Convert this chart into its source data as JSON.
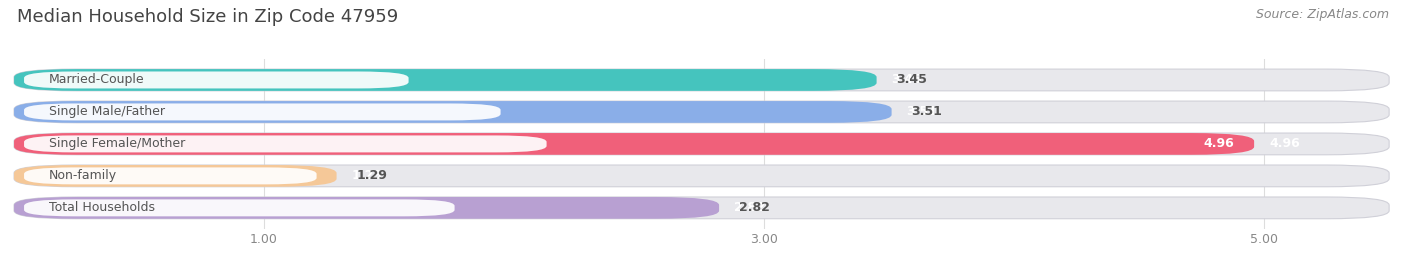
{
  "title": "Median Household Size in Zip Code 47959",
  "source": "Source: ZipAtlas.com",
  "categories": [
    "Married-Couple",
    "Single Male/Father",
    "Single Female/Mother",
    "Non-family",
    "Total Households"
  ],
  "values": [
    3.45,
    3.51,
    4.96,
    1.29,
    2.82
  ],
  "bar_colors": [
    "#45c4be",
    "#8aaee8",
    "#f0607a",
    "#f5c898",
    "#b8a0d2"
  ],
  "xmin": 0.0,
  "xmax": 5.5,
  "xticks": [
    1.0,
    3.0,
    5.0
  ],
  "xtick_labels": [
    "1.00",
    "3.00",
    "5.00"
  ],
  "background_color": "#ffffff",
  "bar_bg_color": "#e8e8ec",
  "label_bg_color": "#ffffff",
  "title_fontsize": 13,
  "source_fontsize": 9,
  "label_fontsize": 9,
  "value_fontsize": 9,
  "bar_height": 0.68,
  "bar_gap": 0.32
}
